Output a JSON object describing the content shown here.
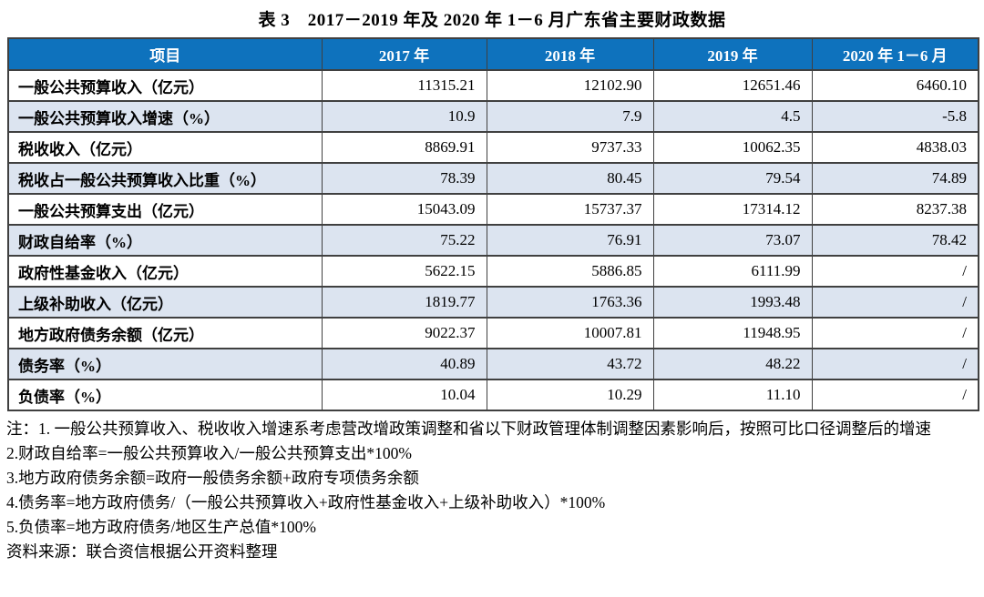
{
  "title": "表 3　2017－2019 年及 2020 年 1－6 月广东省主要财政数据",
  "colors": {
    "header_bg": "#0e72bd",
    "header_text": "#ffffff",
    "alt_row_bg": "#dce4f0",
    "grid_line": "#404040"
  },
  "table": {
    "columns": [
      "项目",
      "2017 年",
      "2018 年",
      "2019 年",
      "2020 年 1－6 月"
    ],
    "rows": [
      {
        "label": "一般公共预算收入（亿元）",
        "values": [
          "11315.21",
          "12102.90",
          "12651.46",
          "6460.10"
        ]
      },
      {
        "label": "一般公共预算收入增速（%）",
        "values": [
          "10.9",
          "7.9",
          "4.5",
          "-5.8"
        ]
      },
      {
        "label": "税收收入（亿元）",
        "values": [
          "8869.91",
          "9737.33",
          "10062.35",
          "4838.03"
        ]
      },
      {
        "label": "税收占一般公共预算收入比重（%）",
        "values": [
          "78.39",
          "80.45",
          "79.54",
          "74.89"
        ]
      },
      {
        "label": "一般公共预算支出（亿元）",
        "values": [
          "15043.09",
          "15737.37",
          "17314.12",
          "8237.38"
        ]
      },
      {
        "label": "财政自给率（%）",
        "values": [
          "75.22",
          "76.91",
          "73.07",
          "78.42"
        ]
      },
      {
        "label": "政府性基金收入（亿元）",
        "values": [
          "5622.15",
          "5886.85",
          "6111.99",
          "/"
        ]
      },
      {
        "label": "上级补助收入（亿元）",
        "values": [
          "1819.77",
          "1763.36",
          "1993.48",
          "/"
        ]
      },
      {
        "label": "地方政府债务余额（亿元）",
        "values": [
          "9022.37",
          "10007.81",
          "11948.95",
          "/"
        ]
      },
      {
        "label": "债务率（%）",
        "values": [
          "40.89",
          "43.72",
          "48.22",
          "/"
        ]
      },
      {
        "label": "负债率（%）",
        "values": [
          "10.04",
          "10.29",
          "11.10",
          "/"
        ]
      }
    ]
  },
  "notes": [
    "注：1. 一般公共预算收入、税收收入增速系考虑营改增政策调整和省以下财政管理体制调整因素影响后，按照可比口径调整后的增速",
    "2.财政自给率=一般公共预算收入/一般公共预算支出*100%",
    "3.地方政府债务余额=政府一般债务余额+政府专项债务余额",
    "4.债务率=地方政府债务/（一般公共预算收入+政府性基金收入+上级补助收入）*100%",
    "5.负债率=地方政府债务/地区生产总值*100%",
    "资料来源：联合资信根据公开资料整理"
  ]
}
